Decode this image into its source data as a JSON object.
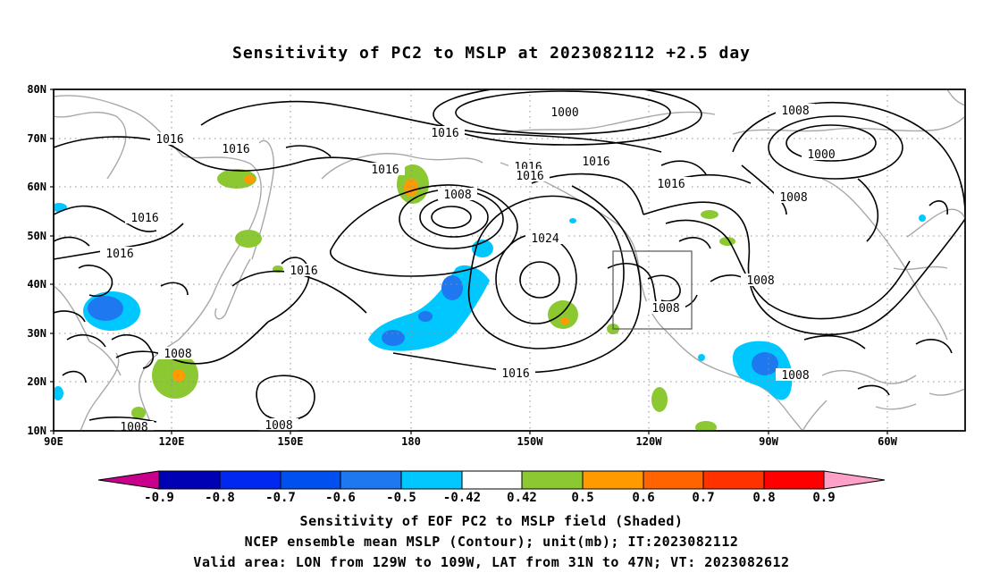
{
  "title": "Sensitivity of PC2 to MSLP at 2023082112 +2.5 day",
  "lat_labels": [
    "80N",
    "70N",
    "60N",
    "50N",
    "40N",
    "30N",
    "20N",
    "10N"
  ],
  "lon_labels": [
    "90E",
    "120E",
    "150E",
    "180",
    "150W",
    "120W",
    "90W",
    "60W"
  ],
  "contour_labels": [
    {
      "text": "1000"
    },
    {
      "text": "1016"
    },
    {
      "text": "1016"
    },
    {
      "text": "1016"
    },
    {
      "text": "1016"
    },
    {
      "text": "1016"
    },
    {
      "text": "1016"
    },
    {
      "text": "1016"
    },
    {
      "text": "1016"
    },
    {
      "text": "1016"
    },
    {
      "text": "1016"
    },
    {
      "text": "1016"
    },
    {
      "text": "1008"
    },
    {
      "text": "1000"
    },
    {
      "text": "1008"
    },
    {
      "text": "1008"
    },
    {
      "text": "1008"
    },
    {
      "text": "1024"
    },
    {
      "text": "1008"
    },
    {
      "text": "1008"
    },
    {
      "text": "1008"
    },
    {
      "text": "1008"
    },
    {
      "text": "1008"
    },
    {
      "text": "1016"
    }
  ],
  "colorbar": {
    "colors": [
      "#c8008c",
      "#0000b4",
      "#0028f0",
      "#0050f0",
      "#1e78f0",
      "#00c8ff",
      "#ffffff",
      "#8cc832",
      "#ff9b00",
      "#ff6400",
      "#ff3200",
      "#ff0000",
      "#ffa0c8"
    ],
    "labels": [
      "-0.9",
      "-0.8",
      "-0.7",
      "-0.6",
      "-0.5",
      "-0.42",
      "0.42",
      "0.5",
      "0.6",
      "0.7",
      "0.8",
      "0.9"
    ]
  },
  "captions": [
    "Sensitivity of EOF PC2 to MSLP field (Shaded)",
    "NCEP ensemble mean MSLP (Contour); unit(mb); IT:2023082112",
    "Valid area: LON from 129W to 109W, LAT from 31N to 47N; VT: 2023082612"
  ]
}
